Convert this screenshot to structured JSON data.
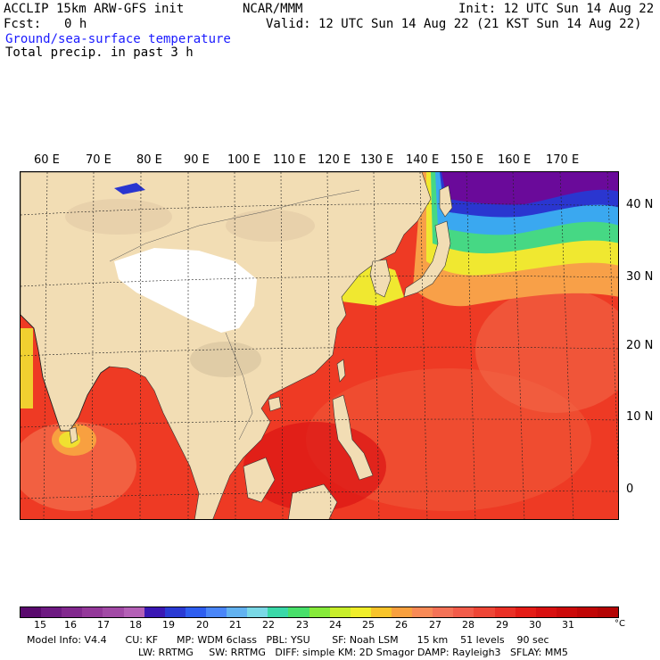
{
  "header": {
    "model": "ACCLIP 15km ARW-GFS init",
    "org": "NCAR/MMM",
    "init": "Init: 12 UTC Sun 14 Aug 22",
    "fcst_label": "Fcst:",
    "fcst_value": "0 h",
    "valid": "Valid: 12 UTC Sun 14 Aug 22 (21 KST Sun 14 Aug 22)",
    "field1": "Ground/sea-surface temperature",
    "field2": "Total precip. in past 3 h"
  },
  "map": {
    "lon_labels": [
      "60 E",
      "70 E",
      "80 E",
      "90 E",
      "100 E",
      "110 E",
      "120 E",
      "130 E",
      "140 E",
      "150 E",
      "160 E",
      "170 E"
    ],
    "lat_labels": [
      "40 N",
      "30 N",
      "20 N",
      "10 N",
      "0"
    ],
    "colors": {
      "land": "#f2ddb4",
      "plateau": "#ffffff",
      "ocean_warm": "#ee2a1a",
      "ocean_hot": "#dd1010",
      "ocean_mid": "#f46a4a",
      "cold": "#6a0a9a"
    }
  },
  "colorbar": {
    "labels": [
      "15",
      "16",
      "17",
      "18",
      "19",
      "20",
      "21",
      "22",
      "23",
      "24",
      "25",
      "26",
      "27",
      "28",
      "29",
      "30",
      "31"
    ],
    "unit": "°C",
    "colors": [
      "#5a0a6e",
      "#6e1a82",
      "#82288e",
      "#94389a",
      "#a24aa6",
      "#b460b6",
      "#3a18b4",
      "#2a3ad4",
      "#2e5ef0",
      "#4a86f8",
      "#62b2f0",
      "#7ad8e6",
      "#3ad8a8",
      "#48e06a",
      "#86ea3a",
      "#c8ee2a",
      "#f0ee2a",
      "#f8c42a",
      "#f8a03e",
      "#f88a56",
      "#f47256",
      "#f25c4a",
      "#ee4636",
      "#ea3026",
      "#e41c16",
      "#d81010",
      "#cc0a0a",
      "#c00606",
      "#b40404"
    ]
  },
  "footer": {
    "line1": "Model Info: V4.4      CU: KF      MP: WDM 6class   PBL: YSU       SF: Noah LSM      15 km    51 levels    90 sec",
    "line2": "LW: RRTMG     SW: RRTMG   DIFF: simple KM: 2D Smagor DAMP: Rayleigh3   SFLAY: MM5"
  }
}
